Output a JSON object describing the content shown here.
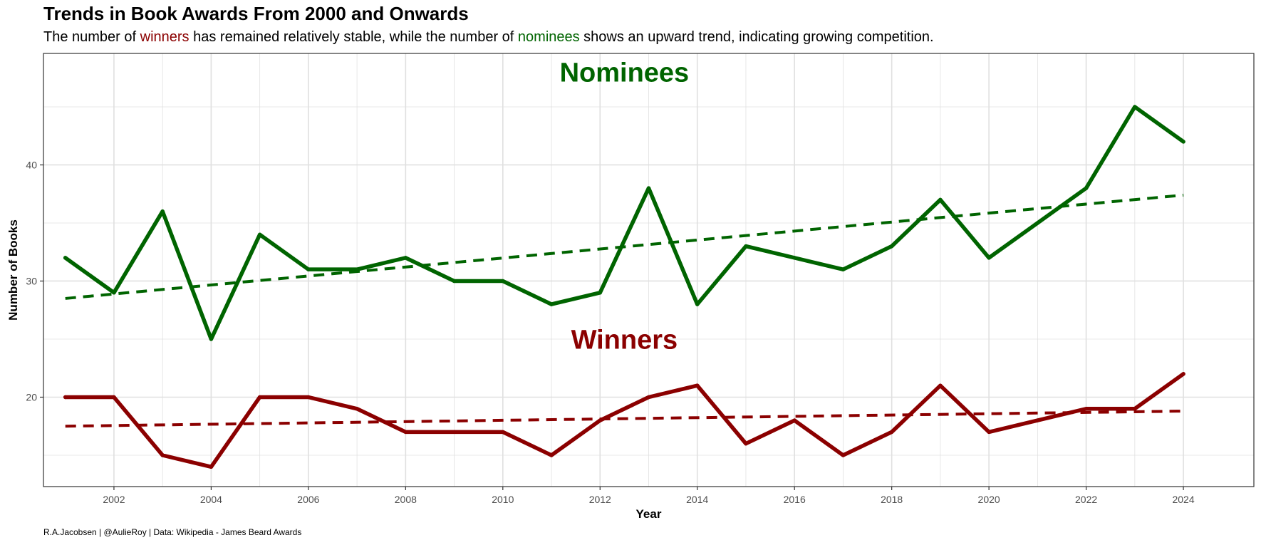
{
  "header": {
    "title": "Trends in Book Awards From 2000 and Onwards",
    "subtitle": {
      "part1": "The number of ",
      "winners_word": "winners",
      "part2": " has remained relatively stable, while the number of ",
      "nominees_word": "nominees",
      "part3": " shows an upward trend, indicating growing competition."
    }
  },
  "caption": "R.A.Jacobsen | @AulieRoy | Data: Wikipedia - James Beard Awards",
  "colors": {
    "winners": "#8b0000",
    "nominees": "#006400",
    "grid": "#e0e0e0",
    "panel_border": "#333333"
  },
  "chart_data": {
    "type": "line",
    "xlabel": "Year",
    "ylabel": "Number of Books",
    "xlim": [
      2000.55,
      2025.45
    ],
    "ylim": [
      12.3,
      49.6
    ],
    "x_ticks": [
      2002,
      2004,
      2006,
      2008,
      2010,
      2012,
      2014,
      2016,
      2018,
      2020,
      2022,
      2024
    ],
    "y_ticks": [
      20,
      30,
      40
    ],
    "grid": true,
    "x": [
      2001,
      2002,
      2003,
      2004,
      2005,
      2006,
      2007,
      2008,
      2009,
      2010,
      2011,
      2012,
      2013,
      2014,
      2015,
      2016,
      2017,
      2018,
      2019,
      2020,
      2021,
      2022,
      2023,
      2024
    ],
    "series": [
      {
        "name": "Nominees",
        "color": "#006400",
        "values": [
          32,
          29,
          36,
          25,
          34,
          31,
          31,
          32,
          30,
          30,
          28,
          29,
          38,
          28,
          33,
          32,
          31,
          33,
          37,
          32,
          35,
          38,
          45,
          42
        ],
        "trend": [
          28.5,
          37.4
        ]
      },
      {
        "name": "Winners",
        "color": "#8b0000",
        "values": [
          20,
          20,
          15,
          14,
          20,
          20,
          19,
          17,
          17,
          17,
          15,
          18,
          20,
          21,
          16,
          18,
          15,
          17,
          21,
          17,
          18,
          19,
          19,
          22
        ],
        "trend": [
          17.5,
          18.8
        ]
      }
    ],
    "annotations": [
      {
        "text": "Nominees",
        "x": 2012.5,
        "y": 47.8,
        "color": "#006400"
      },
      {
        "text": "Winners",
        "x": 2012.5,
        "y": 24.8,
        "color": "#8b0000"
      }
    ]
  }
}
